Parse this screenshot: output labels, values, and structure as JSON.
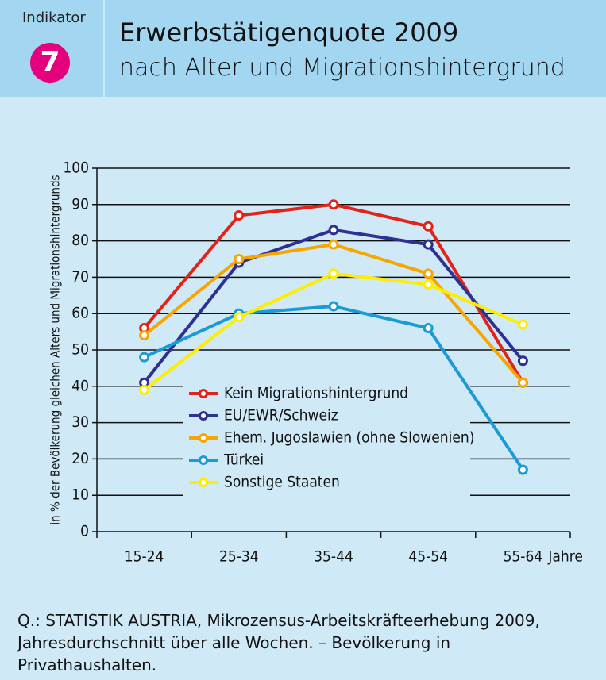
{
  "chart_data": {
    "type": "line",
    "badge_label": "Indikator",
    "badge_number": "7",
    "title": "Erwerbstätigenquote 2009",
    "subtitle": "nach Alter und Migrationshintergrund",
    "y_axis_label": "in % der Bevölkerung gleichen Alters und Migrationshintergrunds",
    "x_axis_label": "Jahre",
    "categories": [
      "15-24",
      "25-34",
      "35-44",
      "45-54",
      "55-64"
    ],
    "series": [
      {
        "name": "Kein Migrationshintergrund",
        "color": "#e2231a",
        "values": [
          56,
          87,
          90,
          84,
          41
        ]
      },
      {
        "name": "EU/EWR/Schweiz",
        "color": "#2e3192",
        "values": [
          41,
          74,
          83,
          79,
          47
        ]
      },
      {
        "name": "Ehem. Jugoslawien (ohne Slowenien)",
        "color": "#f7a600",
        "values": [
          54,
          75,
          79,
          71,
          41
        ]
      },
      {
        "name": "Türkei",
        "color": "#1a9ad6",
        "values": [
          48,
          60,
          62,
          56,
          17
        ]
      },
      {
        "name": "Sonstige Staaten",
        "color": "#ffed00",
        "values": [
          39,
          59,
          71,
          68,
          57
        ]
      }
    ],
    "ylim": [
      0,
      100
    ],
    "yticks": [
      0,
      10,
      20,
      30,
      40,
      50,
      60,
      70,
      80,
      90,
      100
    ],
    "grid": true,
    "source": "Q.: STATISTIK AUSTRIA, Mikrozensus-Arbeitskräfteerhebung 2009, Jahresdurchschnitt über alle Wochen. – Bevölkerung in Privathaushalten."
  }
}
